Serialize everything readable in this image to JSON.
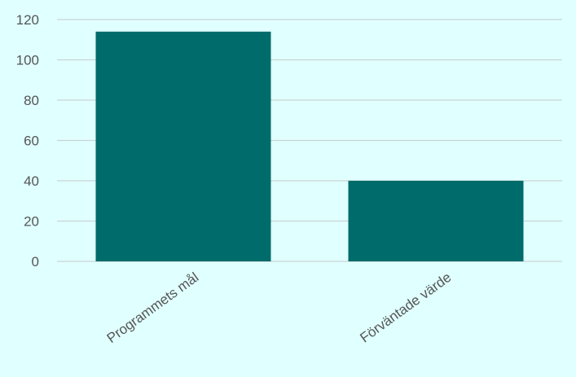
{
  "colors": {
    "background": "#e0ffff",
    "bar": "#006b6b",
    "gridline": "#c9d3d3",
    "text": "#555555"
  },
  "chart_data": {
    "type": "bar",
    "title": "",
    "xlabel": "",
    "ylabel": "",
    "categories": [
      "Programmets mål",
      "Förväntade värde"
    ],
    "values": [
      114,
      40
    ],
    "ylim": [
      0,
      120
    ],
    "yticks": [
      0,
      20,
      40,
      60,
      80,
      100,
      120
    ],
    "grid": true,
    "legend": "none"
  }
}
